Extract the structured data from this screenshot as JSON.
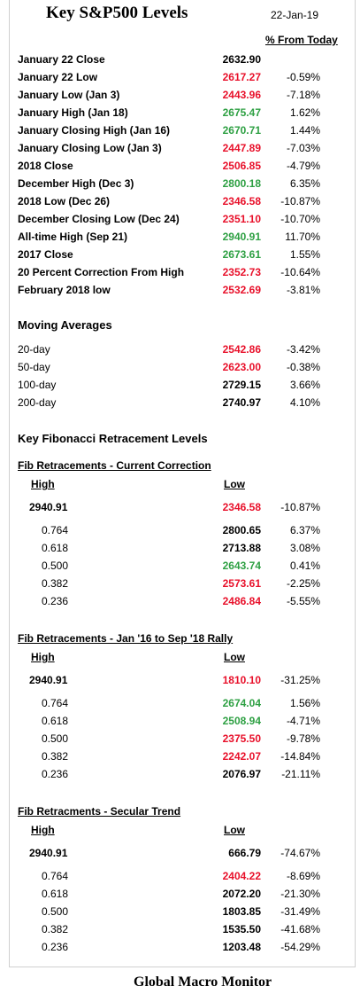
{
  "header": {
    "title": "Key S&P500 Levels",
    "date": "22-Jan-19",
    "pct_heading": "% From Today"
  },
  "key_levels": [
    {
      "label": "January 22 Close",
      "value": "2632.90",
      "pct": "",
      "color": "black"
    },
    {
      "label": "January 22 Low",
      "value": "2617.27",
      "pct": "-0.59%",
      "color": "red"
    },
    {
      "label": "January Low (Jan 3)",
      "value": "2443.96",
      "pct": "-7.18%",
      "color": "red"
    },
    {
      "label": "January High (Jan 18)",
      "value": "2675.47",
      "pct": "1.62%",
      "color": "green"
    },
    {
      "label": "January Closing High (Jan 16)",
      "value": "2670.71",
      "pct": "1.44%",
      "color": "green"
    },
    {
      "label": "January Closing Low (Jan 3)",
      "value": "2447.89",
      "pct": "-7.03%",
      "color": "red"
    },
    {
      "label": "2018 Close",
      "value": "2506.85",
      "pct": "-4.79%",
      "color": "red"
    },
    {
      "label": "December High (Dec 3)",
      "value": "2800.18",
      "pct": "6.35%",
      "color": "green"
    },
    {
      "label": "2018 Low (Dec 26)",
      "value": "2346.58",
      "pct": "-10.87%",
      "color": "red"
    },
    {
      "label": "December Closing Low (Dec 24)",
      "value": "2351.10",
      "pct": "-10.70%",
      "color": "red"
    },
    {
      "label": "All-time High (Sep 21)",
      "value": "2940.91",
      "pct": "11.70%",
      "color": "green"
    },
    {
      "label": "2017 Close",
      "value": "2673.61",
      "pct": "1.55%",
      "color": "green"
    },
    {
      "label": "20 Percent Correction From High",
      "value": "2352.73",
      "pct": "-10.64%",
      "color": "red"
    },
    {
      "label": "February 2018 low",
      "value": "2532.69",
      "pct": "-3.81%",
      "color": "red"
    }
  ],
  "moving_averages": {
    "heading": "Moving Averages",
    "rows": [
      {
        "label": "20-day",
        "value": "2542.86",
        "pct": "-3.42%",
        "color": "red"
      },
      {
        "label": "50-day",
        "value": "2623.00",
        "pct": "-0.38%",
        "color": "red"
      },
      {
        "label": "100-day",
        "value": "2729.15",
        "pct": "3.66%",
        "color": "black"
      },
      {
        "label": "200-day",
        "value": "2740.97",
        "pct": "4.10%",
        "color": "black"
      }
    ]
  },
  "fibonacci": {
    "heading": "Key Fibonacci Retracement Levels",
    "high_label": "High",
    "low_label": "Low",
    "sections": [
      {
        "title": "Fib Retracements - Current Correction",
        "high": "2940.91",
        "low": "2346.58",
        "low_pct": "-10.87%",
        "low_color": "red",
        "levels": [
          {
            "ratio": "0.764",
            "value": "2800.65",
            "pct": "6.37%",
            "color": "black"
          },
          {
            "ratio": "0.618",
            "value": "2713.88",
            "pct": "3.08%",
            "color": "black"
          },
          {
            "ratio": "0.500",
            "value": "2643.74",
            "pct": "0.41%",
            "color": "green"
          },
          {
            "ratio": "0.382",
            "value": "2573.61",
            "pct": "-2.25%",
            "color": "red"
          },
          {
            "ratio": "0.236",
            "value": "2486.84",
            "pct": "-5.55%",
            "color": "red"
          }
        ]
      },
      {
        "title": "Fib Retracements - Jan '16 to Sep '18 Rally",
        "high": "2940.91",
        "low": "1810.10",
        "low_pct": "-31.25%",
        "low_color": "red",
        "levels": [
          {
            "ratio": "0.764",
            "value": "2674.04",
            "pct": "1.56%",
            "color": "green"
          },
          {
            "ratio": "0.618",
            "value": "2508.94",
            "pct": "-4.71%",
            "color": "green"
          },
          {
            "ratio": "0.500",
            "value": "2375.50",
            "pct": "-9.78%",
            "color": "red"
          },
          {
            "ratio": "0.382",
            "value": "2242.07",
            "pct": "-14.84%",
            "color": "red"
          },
          {
            "ratio": "0.236",
            "value": "2076.97",
            "pct": "-21.11%",
            "color": "black"
          }
        ]
      },
      {
        "title": "Fib Retracments - Secular Trend",
        "high": "2940.91",
        "low": "666.79",
        "low_pct": "-74.67%",
        "low_color": "black",
        "levels": [
          {
            "ratio": "0.764",
            "value": "2404.22",
            "pct": "-8.69%",
            "color": "red"
          },
          {
            "ratio": "0.618",
            "value": "2072.20",
            "pct": "-21.30%",
            "color": "black"
          },
          {
            "ratio": "0.500",
            "value": "1803.85",
            "pct": "-31.49%",
            "color": "black"
          },
          {
            "ratio": "0.382",
            "value": "1535.50",
            "pct": "-41.68%",
            "color": "black"
          },
          {
            "ratio": "0.236",
            "value": "1203.48",
            "pct": "-54.29%",
            "color": "black"
          }
        ]
      }
    ]
  },
  "footer": {
    "text": "Global Macro Monitor"
  },
  "colors": {
    "red": "#e8102a",
    "green": "#2ea043",
    "black": "#000000"
  }
}
